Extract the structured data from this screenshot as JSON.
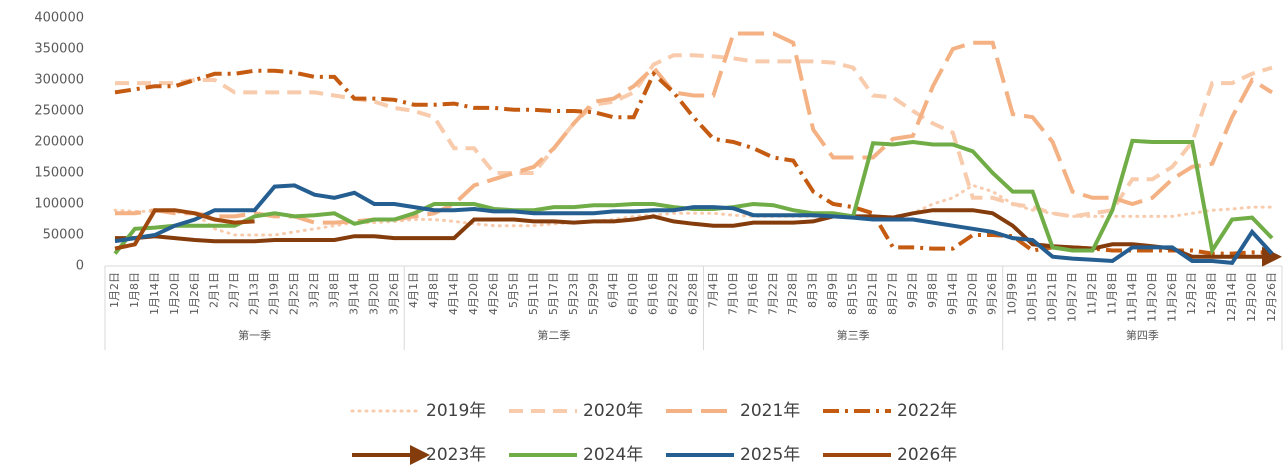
{
  "chart_data": {
    "type": "line",
    "groups": [
      {
        "label": "第一季",
        "categories": [
          "1月2日",
          "1月8日",
          "1月14日",
          "1月20日",
          "1月26日",
          "2月1日",
          "2月7日",
          "2月13日",
          "2月19日",
          "2月25日",
          "3月2日",
          "3月8日",
          "3月14日",
          "3月20日",
          "3月26日"
        ]
      },
      {
        "label": "第二季",
        "categories": [
          "4月1日",
          "4月8日",
          "4月14日",
          "4月20日",
          "4月26日",
          "5月5日",
          "5月11日",
          "5月17日",
          "5月23日",
          "5月29日",
          "6月4日",
          "6月10日",
          "6月16日",
          "6月22日",
          "6月28日"
        ]
      },
      {
        "label": "第三季",
        "categories": [
          "7月4日",
          "7月10日",
          "7月16日",
          "7月22日",
          "7月28日",
          "8月3日",
          "8月9日",
          "8月15日",
          "8月21日",
          "8月27日",
          "9月2日",
          "9月8日",
          "9月14日",
          "9月20日",
          "9月26日"
        ]
      },
      {
        "label": "第四季",
        "categories": [
          "10月9日",
          "10月15日",
          "10月21日",
          "10月27日",
          "11月2日",
          "11月8日",
          "11月14日",
          "11月20日",
          "11月26日",
          "12月2日",
          "12月8日",
          "12月14日",
          "12月20日",
          "12月26日"
        ]
      }
    ],
    "ylim": [
      0,
      400000
    ],
    "yticks": [
      0,
      50000,
      100000,
      150000,
      200000,
      250000,
      300000,
      350000,
      400000
    ],
    "series": [
      {
        "name": "2019年",
        "color": "#f8cbad",
        "style": "dotted",
        "values": [
          90000,
          88000,
          88000,
          87000,
          85000,
          60000,
          50000,
          50000,
          50000,
          55000,
          60000,
          65000,
          70000,
          70000,
          72000,
          75000,
          75000,
          72000,
          68000,
          65000,
          65000,
          65000,
          68000,
          70000,
          72000,
          75000,
          80000,
          82000,
          85000,
          85000,
          85000,
          82000,
          80000,
          80000,
          80000,
          80000,
          80000,
          78000,
          78000,
          80000,
          85000,
          100000,
          110000,
          130000,
          120000,
          100000,
          90000,
          85000,
          80000,
          80000,
          80000,
          80000,
          80000,
          80000,
          85000,
          90000,
          92000,
          95000,
          95000
        ]
      },
      {
        "name": "2020年",
        "color": "#f8cbad",
        "style": "dashed",
        "values": [
          295000,
          295000,
          295000,
          295000,
          300000,
          300000,
          280000,
          280000,
          280000,
          280000,
          280000,
          275000,
          270000,
          265000,
          255000,
          250000,
          240000,
          190000,
          190000,
          150000,
          150000,
          150000,
          190000,
          230000,
          260000,
          265000,
          280000,
          325000,
          340000,
          340000,
          338000,
          335000,
          330000,
          330000,
          330000,
          330000,
          328000,
          320000,
          275000,
          272000,
          250000,
          230000,
          215000,
          110000,
          110000,
          100000,
          95000,
          85000,
          80000,
          85000,
          90000,
          140000,
          140000,
          160000,
          200000,
          295000,
          295000,
          310000,
          320000
        ]
      },
      {
        "name": "2021年",
        "color": "#f4b183",
        "style": "longdash",
        "values": [
          85000,
          85000,
          90000,
          85000,
          85000,
          80000,
          80000,
          85000,
          80000,
          80000,
          70000,
          70000,
          72000,
          75000,
          75000,
          80000,
          85000,
          100000,
          130000,
          140000,
          150000,
          160000,
          190000,
          230000,
          265000,
          270000,
          290000,
          320000,
          280000,
          275000,
          275000,
          375000,
          375000,
          375000,
          360000,
          220000,
          175000,
          175000,
          175000,
          205000,
          210000,
          290000,
          350000,
          360000,
          360000,
          245000,
          240000,
          200000,
          120000,
          110000,
          110000,
          100000,
          110000,
          140000,
          160000,
          165000,
          240000,
          300000,
          280000
        ]
      },
      {
        "name": "2022年",
        "color": "#c55a11",
        "style": "dashdot",
        "values": [
          280000,
          285000,
          290000,
          290000,
          300000,
          310000,
          310000,
          315000,
          315000,
          312000,
          305000,
          305000,
          270000,
          270000,
          268000,
          260000,
          260000,
          262000,
          255000,
          255000,
          252000,
          252000,
          250000,
          250000,
          248000,
          240000,
          240000,
          310000,
          280000,
          240000,
          205000,
          200000,
          190000,
          175000,
          170000,
          120000,
          100000,
          95000,
          85000,
          30000,
          30000,
          28000,
          28000,
          50000,
          50000,
          48000,
          25000,
          30000,
          30000,
          28000,
          25000,
          25000,
          25000,
          25000,
          25000,
          20000,
          20000,
          22000,
          22000
        ]
      },
      {
        "name": "2023年",
        "color": "#843c0c",
        "style": "arrow",
        "values": [
          45000,
          45000,
          48000,
          45000,
          42000,
          40000,
          40000,
          40000,
          42000,
          42000,
          42000,
          42000,
          48000,
          48000,
          45000,
          45000,
          45000,
          45000,
          75000,
          75000,
          75000,
          72000,
          72000,
          70000,
          72000,
          72000,
          75000,
          80000,
          72000,
          68000,
          65000,
          65000,
          70000,
          70000,
          70000,
          72000,
          80000,
          80000,
          80000,
          78000,
          85000,
          90000,
          90000,
          90000,
          85000,
          65000,
          35000,
          32000,
          30000,
          28000,
          35000,
          35000,
          32000,
          28000,
          15000,
          15000,
          15000,
          15000,
          15000
        ]
      },
      {
        "name": "2024年",
        "color": "#70ad47",
        "style": "solid",
        "values": [
          20000,
          60000,
          62000,
          65000,
          65000,
          65000,
          65000,
          80000,
          85000,
          80000,
          82000,
          85000,
          68000,
          75000,
          75000,
          85000,
          100000,
          100000,
          100000,
          92000,
          90000,
          90000,
          95000,
          95000,
          98000,
          98000,
          100000,
          100000,
          95000,
          92000,
          92000,
          95000,
          100000,
          98000,
          90000,
          85000,
          85000,
          80000,
          198000,
          196000,
          200000,
          196000,
          196000,
          185000,
          150000,
          120000,
          120000,
          30000,
          25000,
          25000,
          90000,
          202000,
          200000,
          200000,
          200000,
          25000,
          75000,
          78000,
          45000
        ]
      },
      {
        "name": "2025年",
        "color": "#255e91",
        "style": "solid",
        "values": [
          40000,
          45000,
          50000,
          65000,
          75000,
          90000,
          90000,
          90000,
          128000,
          130000,
          115000,
          110000,
          118000,
          100000,
          100000,
          95000,
          90000,
          90000,
          92000,
          88000,
          88000,
          85000,
          85000,
          85000,
          85000,
          88000,
          88000,
          90000,
          90000,
          95000,
          95000,
          93000,
          82000,
          82000,
          82000,
          82000,
          80000,
          78000,
          75000,
          75000,
          75000,
          70000,
          65000,
          60000,
          55000,
          45000,
          42000,
          15000,
          12000,
          10000,
          8000,
          30000,
          30000,
          30000,
          8000,
          8000,
          5000,
          55000,
          20000
        ]
      },
      {
        "name": "2026年",
        "color": "#9e480e",
        "style": "solid",
        "values": [
          28000,
          35000,
          90000,
          90000,
          85000,
          75000,
          70000,
          72000,
          null,
          null,
          null,
          null,
          null,
          null,
          null,
          null,
          null,
          null,
          null,
          null,
          null,
          null,
          null,
          null,
          null,
          null,
          null,
          null,
          null,
          null,
          null,
          null,
          null,
          null,
          null,
          null,
          null,
          null,
          null,
          null,
          null,
          null,
          null,
          null,
          null,
          null,
          null,
          null,
          null,
          null,
          null,
          null,
          null,
          null,
          null,
          null,
          null,
          null,
          null
        ]
      }
    ]
  }
}
